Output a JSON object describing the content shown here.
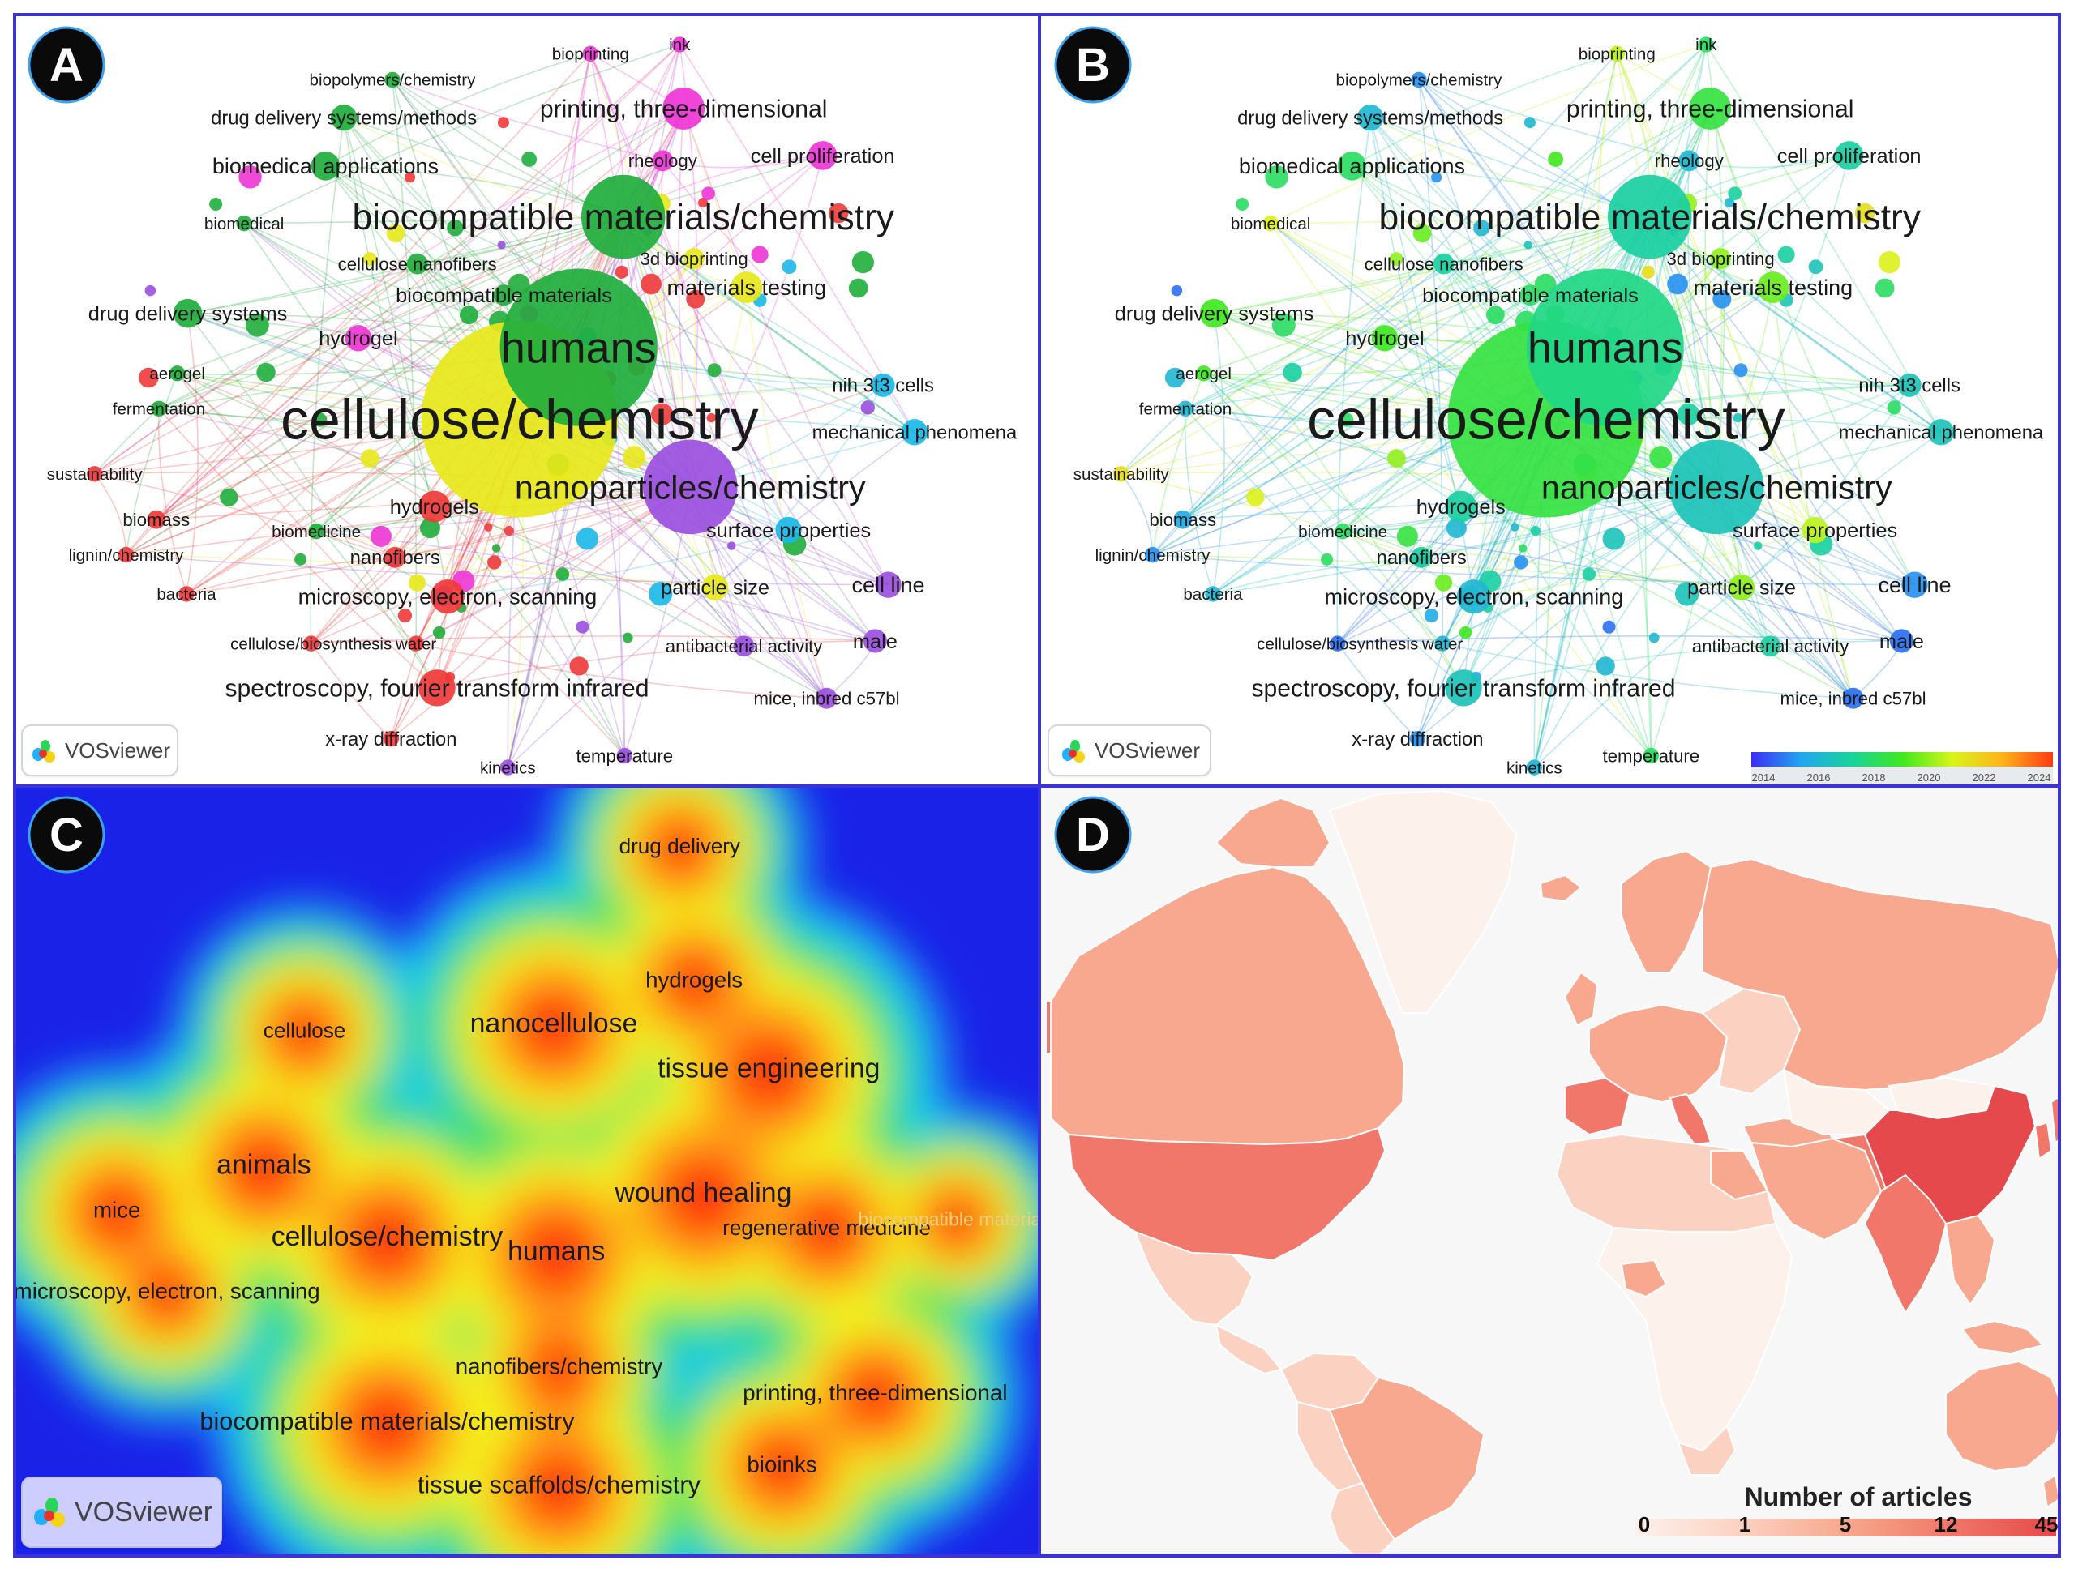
{
  "panels": [
    {
      "id": "A",
      "badge": "A",
      "watermark": "VOSviewer"
    },
    {
      "id": "B",
      "badge": "B",
      "watermark": "VOSviewer",
      "colorbar": {
        "ticks": [
          "2014",
          "2016",
          "2018",
          "2020",
          "2022",
          "2024"
        ],
        "colors": [
          "#3b2df5",
          "#22a7f0",
          "#19d39a",
          "#3fe81f",
          "#d8f51a",
          "#ffb21a",
          "#ff3a12"
        ]
      }
    },
    {
      "id": "C",
      "badge": "C",
      "watermark": "VOSviewer"
    },
    {
      "id": "D",
      "badge": "D",
      "legend": {
        "title": "Number of articles",
        "ticks": [
          "0",
          "1",
          "5",
          "12",
          "45"
        ],
        "colors": [
          "#fdf1ec",
          "#fbd2c2",
          "#f7a88e",
          "#f0776a",
          "#e5494b"
        ]
      }
    }
  ],
  "colors": {
    "red": "#f03a3a",
    "green": "#1fae3c",
    "blue": "#3a2fd6",
    "yellow": "#e8e81a",
    "purple": "#9a4fe0",
    "cyan": "#1ab8e8",
    "magenta": "#ee35d6",
    "frame": "#3b33d8",
    "heat_bg": "#1a22e8",
    "map_sea": "#f7f7f7"
  },
  "network": {
    "nodes": [
      {
        "label": "cellulose/chemistry",
        "cluster": "yellow",
        "year": 2018.5,
        "weight": 10
      },
      {
        "label": "humans",
        "cluster": "green",
        "year": 2017.5,
        "weight": 8
      },
      {
        "label": "nanoparticles/chemistry",
        "cluster": "purple",
        "year": 2016.5,
        "weight": 6
      },
      {
        "label": "biocompatible materials/chemistry",
        "cluster": "green",
        "year": 2017,
        "weight": 6
      },
      {
        "label": "printing, three-dimensional",
        "cluster": "magenta",
        "year": 2018.5,
        "weight": 5
      },
      {
        "label": "biomedical applications",
        "cluster": "green",
        "year": 2018,
        "weight": 4
      },
      {
        "label": "spectroscopy, fourier transform infrared",
        "cluster": "red",
        "year": 2016.5,
        "weight": 4
      },
      {
        "label": "microscopy, electron, scanning",
        "cluster": "red",
        "year": 2016,
        "weight": 4
      },
      {
        "label": "drug delivery systems",
        "cluster": "green",
        "year": 2019,
        "weight": 3
      },
      {
        "label": "drug delivery systems/methods",
        "cluster": "green",
        "year": 2016,
        "weight": 3
      },
      {
        "label": "materials testing",
        "cluster": "yellow",
        "year": 2019.5,
        "weight": 3
      },
      {
        "label": "surface properties",
        "cluster": "cyan",
        "year": 2020.5,
        "weight": 3
      },
      {
        "label": "nih 3t3 cells",
        "cluster": "cyan",
        "year": 2016.5,
        "weight": 3
      },
      {
        "label": "mechanical phenomena",
        "cluster": "cyan",
        "year": 2016.5,
        "weight": 3
      },
      {
        "label": "hydrogels",
        "cluster": "red",
        "year": 2017,
        "weight": 3
      },
      {
        "label": "hydrogel",
        "cluster": "magenta",
        "year": 2019,
        "weight": 3
      },
      {
        "label": "particle size",
        "cluster": "yellow",
        "year": 2020,
        "weight": 3
      },
      {
        "label": "cell line",
        "cluster": "purple",
        "year": 2015,
        "weight": 3
      },
      {
        "label": "antibacterial activity",
        "cluster": "purple",
        "year": 2017,
        "weight": 2
      },
      {
        "label": "male",
        "cluster": "purple",
        "year": 2014.5,
        "weight": 3
      },
      {
        "label": "mice, inbred c57bl",
        "cluster": "purple",
        "year": 2014.5,
        "weight": 2
      },
      {
        "label": "cell proliferation",
        "cluster": "magenta",
        "year": 2017,
        "weight": 3
      },
      {
        "label": "rheology",
        "cluster": "magenta",
        "year": 2016,
        "weight": 2
      },
      {
        "label": "3d bioprinting",
        "cluster": "yellow",
        "year": 2020,
        "weight": 2
      },
      {
        "label": "biocompatible materials",
        "cluster": "green",
        "year": 2018,
        "weight": 2
      },
      {
        "label": "cellulose nanofibers",
        "cluster": "green",
        "year": 2017,
        "weight": 2
      },
      {
        "label": "biomedical",
        "cluster": "green",
        "year": 2021,
        "weight": 1
      },
      {
        "label": "aerogel",
        "cluster": "green",
        "year": 2019,
        "weight": 1
      },
      {
        "label": "fermentation",
        "cluster": "green",
        "year": 2016,
        "weight": 1
      },
      {
        "label": "sustainability",
        "cluster": "red",
        "year": 2021.5,
        "weight": 1
      },
      {
        "label": "biomass",
        "cluster": "red",
        "year": 2015.5,
        "weight": 2
      },
      {
        "label": "biomedicine",
        "cluster": "green",
        "year": 2018,
        "weight": 1
      },
      {
        "label": "lignin/chemistry",
        "cluster": "red",
        "year": 2015,
        "weight": 1
      },
      {
        "label": "bacteria",
        "cluster": "red",
        "year": 2016,
        "weight": 1
      },
      {
        "label": "nanofibers",
        "cluster": "red",
        "year": 2017,
        "weight": 2
      },
      {
        "label": "cellulose/biosynthesis",
        "cluster": "red",
        "year": 2014.5,
        "weight": 1
      },
      {
        "label": "water",
        "cluster": "red",
        "year": 2016,
        "weight": 1
      },
      {
        "label": "x-ray diffraction",
        "cluster": "red",
        "year": 2015,
        "weight": 2
      },
      {
        "label": "kinetics",
        "cluster": "purple",
        "year": 2016,
        "weight": 1
      },
      {
        "label": "temperature",
        "cluster": "purple",
        "year": 2018,
        "weight": 1
      },
      {
        "label": "biopolymers/chemistry",
        "cluster": "green",
        "year": 2015,
        "weight": 1
      },
      {
        "label": "bioprinting",
        "cluster": "magenta",
        "year": 2020.5,
        "weight": 1
      },
      {
        "label": "ink",
        "cluster": "magenta",
        "year": 2018,
        "weight": 1
      }
    ]
  },
  "density": {
    "items": [
      {
        "label": "drug delivery"
      },
      {
        "label": "hydrogels"
      },
      {
        "label": "nanocellulose"
      },
      {
        "label": "tissue engineering"
      },
      {
        "label": "cellulose"
      },
      {
        "label": "animals"
      },
      {
        "label": "wound healing"
      },
      {
        "label": "regenerative medicine"
      },
      {
        "label": "biocompatible materials"
      },
      {
        "label": "mice"
      },
      {
        "label": "cellulose/chemistry"
      },
      {
        "label": "humans"
      },
      {
        "label": "microscopy, electron, scanning"
      },
      {
        "label": "nanofibers/chemistry"
      },
      {
        "label": "printing, three-dimensional"
      },
      {
        "label": "biocompatible materials/chemistry"
      },
      {
        "label": "bioinks"
      },
      {
        "label": "tissue scaffolds/chemistry"
      }
    ]
  }
}
